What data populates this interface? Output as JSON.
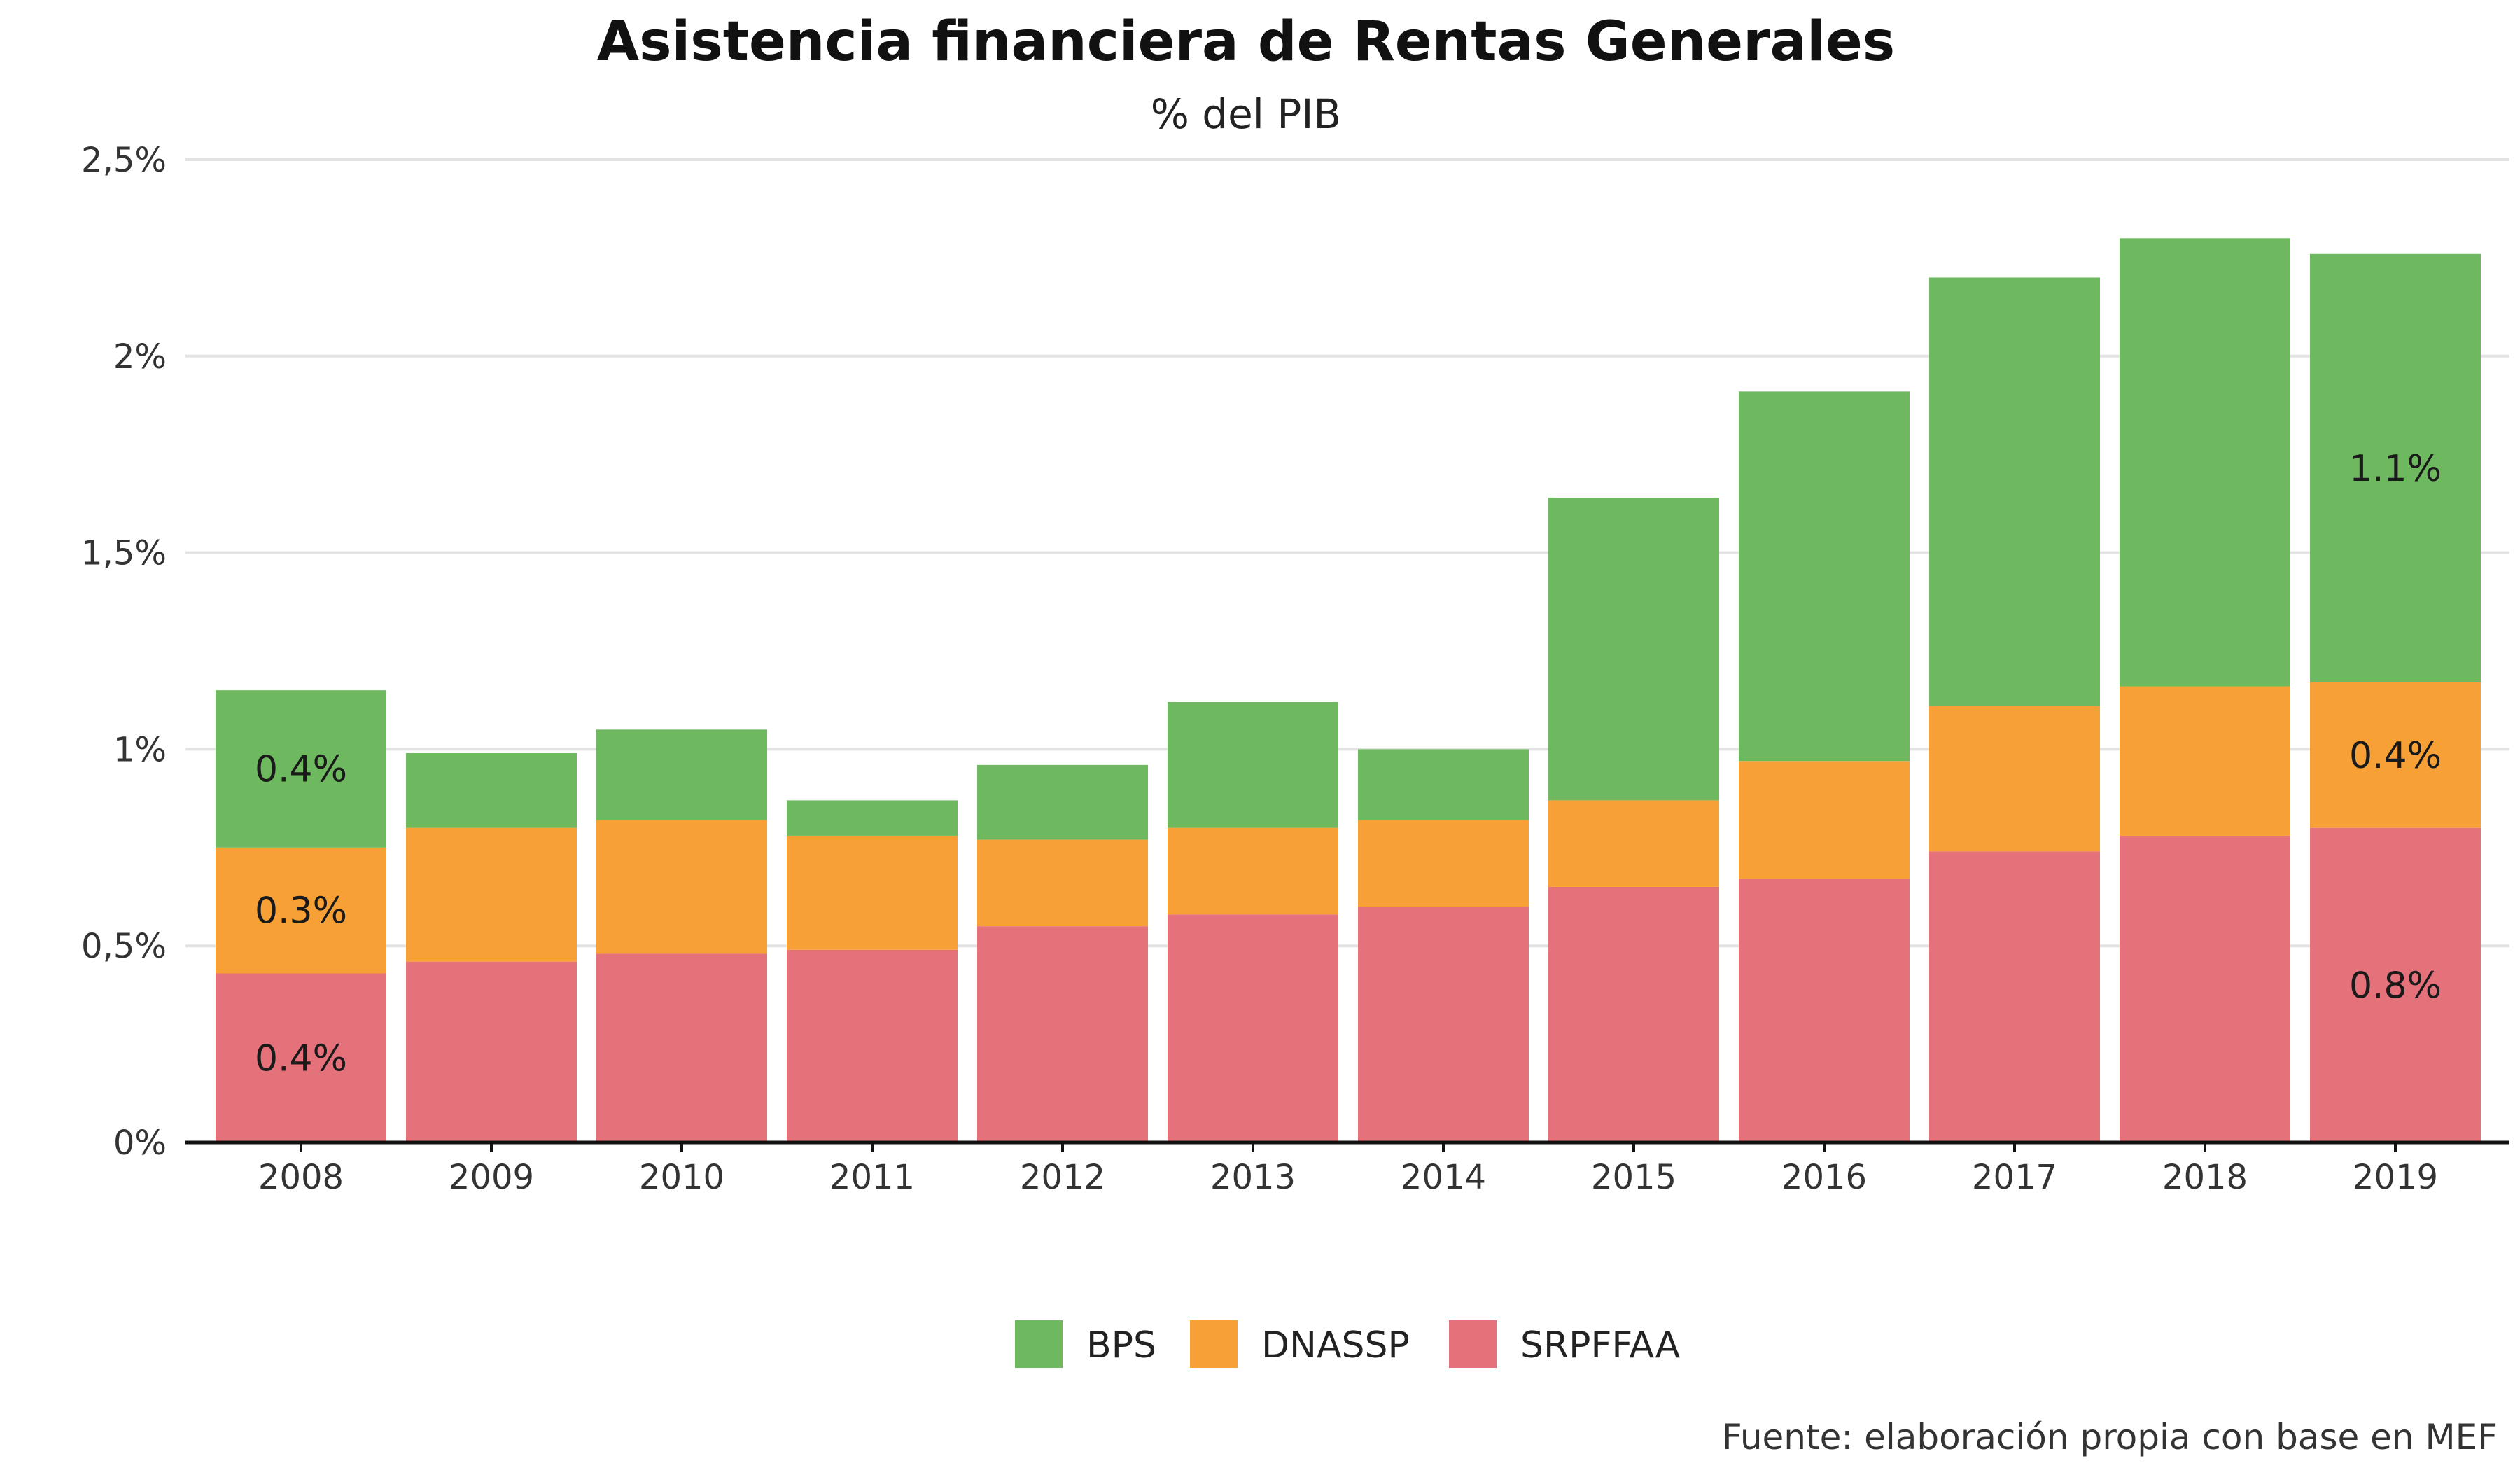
{
  "chart_data": {
    "type": "bar",
    "stacked": true,
    "title": "Asistencia financiera de Rentas Generales",
    "subtitle": "% del PIB",
    "xlabel": "",
    "ylabel": "",
    "ylim": [
      0,
      2.5
    ],
    "y_ticks": [
      0,
      0.5,
      1,
      1.5,
      2,
      2.5
    ],
    "y_tick_labels": [
      "0%",
      "0,5%",
      "1%",
      "1,5%",
      "2%",
      "2,5%"
    ],
    "grid": true,
    "legend_position": "bottom",
    "categories": [
      "2008",
      "2009",
      "2010",
      "2011",
      "2012",
      "2013",
      "2014",
      "2015",
      "2016",
      "2017",
      "2018",
      "2019"
    ],
    "series": [
      {
        "name": "SRPFFAA",
        "color": "#e5717a",
        "values": [
          0.43,
          0.46,
          0.48,
          0.49,
          0.55,
          0.58,
          0.6,
          0.65,
          0.67,
          0.74,
          0.78,
          0.8
        ]
      },
      {
        "name": "DNASSP",
        "color": "#f7a035",
        "values": [
          0.32,
          0.34,
          0.34,
          0.29,
          0.22,
          0.22,
          0.22,
          0.22,
          0.3,
          0.37,
          0.38,
          0.37
        ]
      },
      {
        "name": "BPS",
        "color": "#6eb95f",
        "values": [
          0.4,
          0.19,
          0.23,
          0.09,
          0.19,
          0.32,
          0.18,
          0.77,
          0.94,
          1.09,
          1.14,
          1.09
        ]
      }
    ],
    "legend_order": [
      "BPS",
      "DNASSP",
      "SRPFFAA"
    ],
    "annotations": [
      {
        "category": "2008",
        "series": "SRPFFAA",
        "text": "0.4%"
      },
      {
        "category": "2008",
        "series": "DNASSP",
        "text": "0.3%"
      },
      {
        "category": "2008",
        "series": "BPS",
        "text": "0.4%"
      },
      {
        "category": "2019",
        "series": "SRPFFAA",
        "text": "0.8%"
      },
      {
        "category": "2019",
        "series": "DNASSP",
        "text": "0.4%"
      },
      {
        "category": "2019",
        "series": "BPS",
        "text": "1.1%"
      }
    ],
    "source": "Fuente: elaboración propia con base en MEF"
  }
}
